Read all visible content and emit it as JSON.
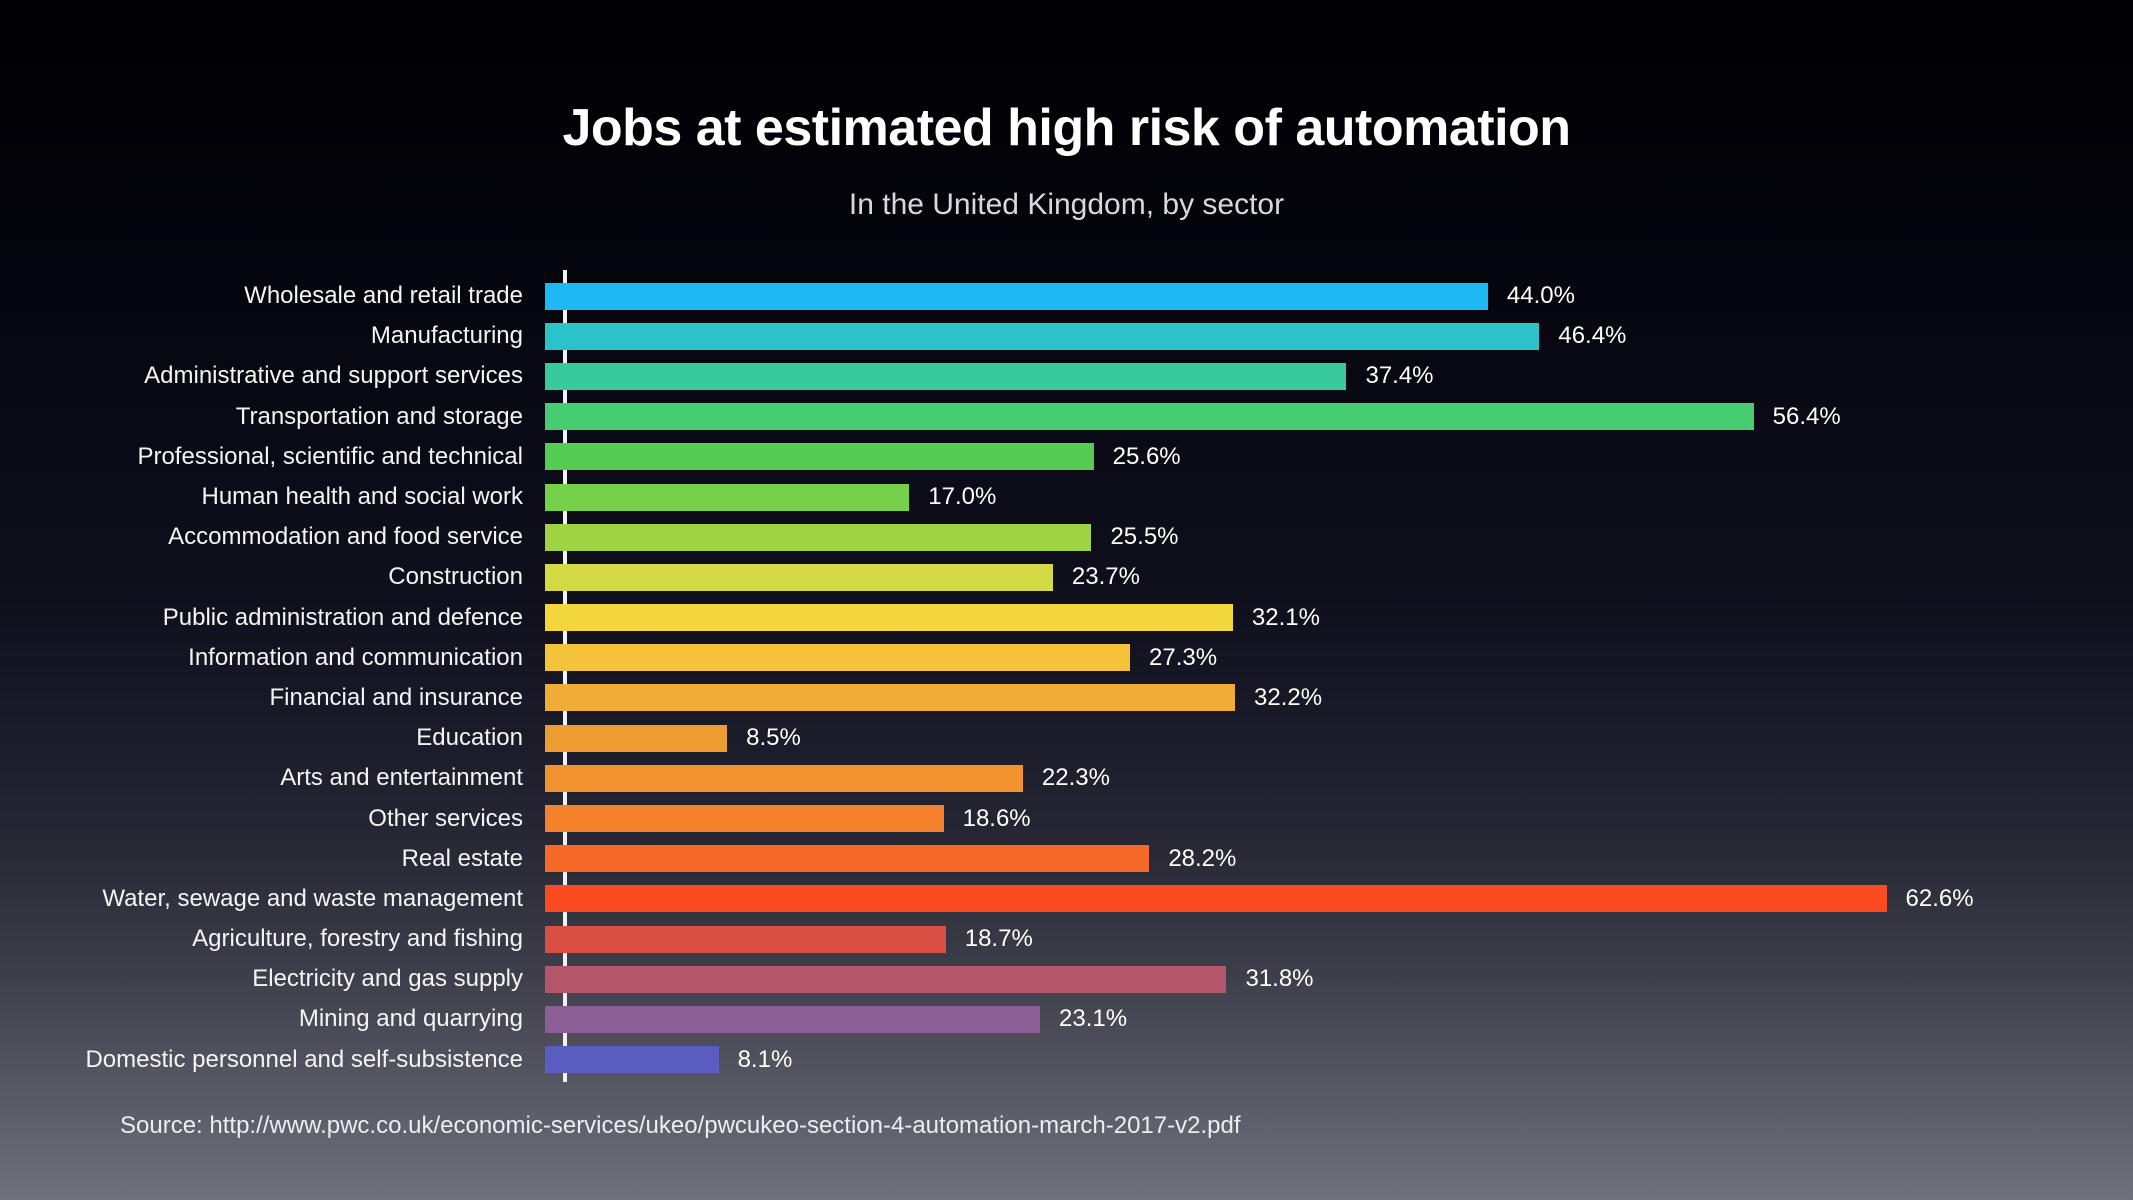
{
  "title": "Jobs at estimated high risk of automation",
  "subtitle": "In the United Kingdom, by sector",
  "source": "Source: http://www.pwc.co.uk/economic-services/ukeo/pwcukeo-section-4-automation-march-2017-v2.pdf",
  "chart_data": {
    "type": "bar",
    "orientation": "horizontal",
    "title": "Jobs at estimated high risk of automation",
    "subtitle": "In the United Kingdom, by sector",
    "xlabel": "",
    "ylabel": "",
    "unit": "%",
    "xlim": [
      0,
      66
    ],
    "grid": false,
    "legend": "none",
    "categories": [
      "Wholesale and retail trade",
      "Manufacturing",
      "Administrative and support services",
      "Transportation and storage",
      "Professional, scientific and technical",
      "Human health and social work",
      "Accommodation and food service",
      "Construction",
      "Public administration and defence",
      "Information and communication",
      "Financial and insurance",
      "Education",
      "Arts and entertainment",
      "Other services",
      "Real estate",
      "Water, sewage and waste management",
      "Agriculture, forestry and fishing",
      "Electricity and gas supply",
      "Mining and quarrying",
      "Domestic personnel and self-subsistence"
    ],
    "values": [
      44.0,
      46.4,
      37.4,
      56.4,
      25.6,
      17.0,
      25.5,
      23.7,
      32.1,
      27.3,
      32.2,
      8.5,
      22.3,
      18.6,
      28.2,
      62.6,
      18.7,
      31.8,
      23.1,
      8.1
    ],
    "value_labels": [
      "44.0%",
      "46.4%",
      "37.4%",
      "56.4%",
      "25.6%",
      "17.0%",
      "25.5%",
      "23.7%",
      "32.1%",
      "27.3%",
      "32.2%",
      "8.5%",
      "22.3%",
      "18.6%",
      "28.2%",
      "62.6%",
      "18.7%",
      "31.8%",
      "23.1%",
      "8.1%"
    ],
    "bar_colors": [
      "#1eb8f2",
      "#2cc2c9",
      "#38c99c",
      "#47cd70",
      "#55cc52",
      "#77d04a",
      "#a0d343",
      "#d4da45",
      "#f3d63b",
      "#f4c339",
      "#f0ac36",
      "#ee9d32",
      "#f0922f",
      "#f5812c",
      "#f66a29",
      "#fb4b21",
      "#da4f43",
      "#b4566a",
      "#8b5f96",
      "#5a5cc0"
    ],
    "background_top": "#000003",
    "background_bottom": "#71717d",
    "axis_line_color": "#f2f2f4",
    "text_color": "#ffffff"
  }
}
